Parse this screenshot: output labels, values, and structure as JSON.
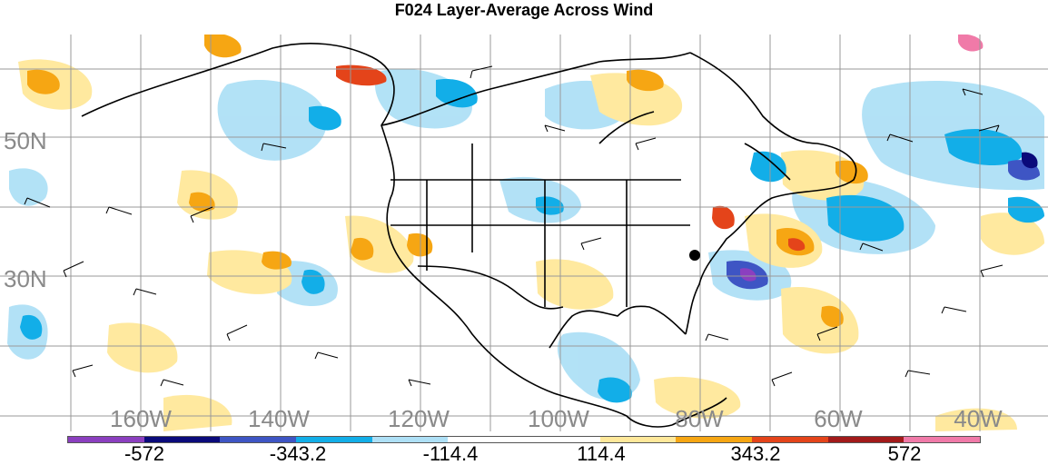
{
  "title": "F024 Layer-Average Across Wind",
  "lat_labels": [
    "50N",
    "30N"
  ],
  "lon_labels": [
    "160W",
    "140W",
    "120W",
    "100W",
    "80W",
    "60W",
    "40W"
  ],
  "colorbar": {
    "colors": [
      "#8b3fbf",
      "#0a0a7a",
      "#3e55c4",
      "#12aee8",
      "#aee0f6",
      "#ffffff",
      "#ffffff",
      "#ffe89a",
      "#f6a613",
      "#e4441a",
      "#a21a1a",
      "#f07aa8"
    ],
    "labels": [
      "-572",
      "-343.2",
      "-114.4",
      "114.4",
      "343.2",
      "572"
    ]
  },
  "style": {
    "ocean_color": "#ffffff",
    "grid_color": "#999999",
    "coast_color": "#000000",
    "marker_color": "#000000"
  }
}
